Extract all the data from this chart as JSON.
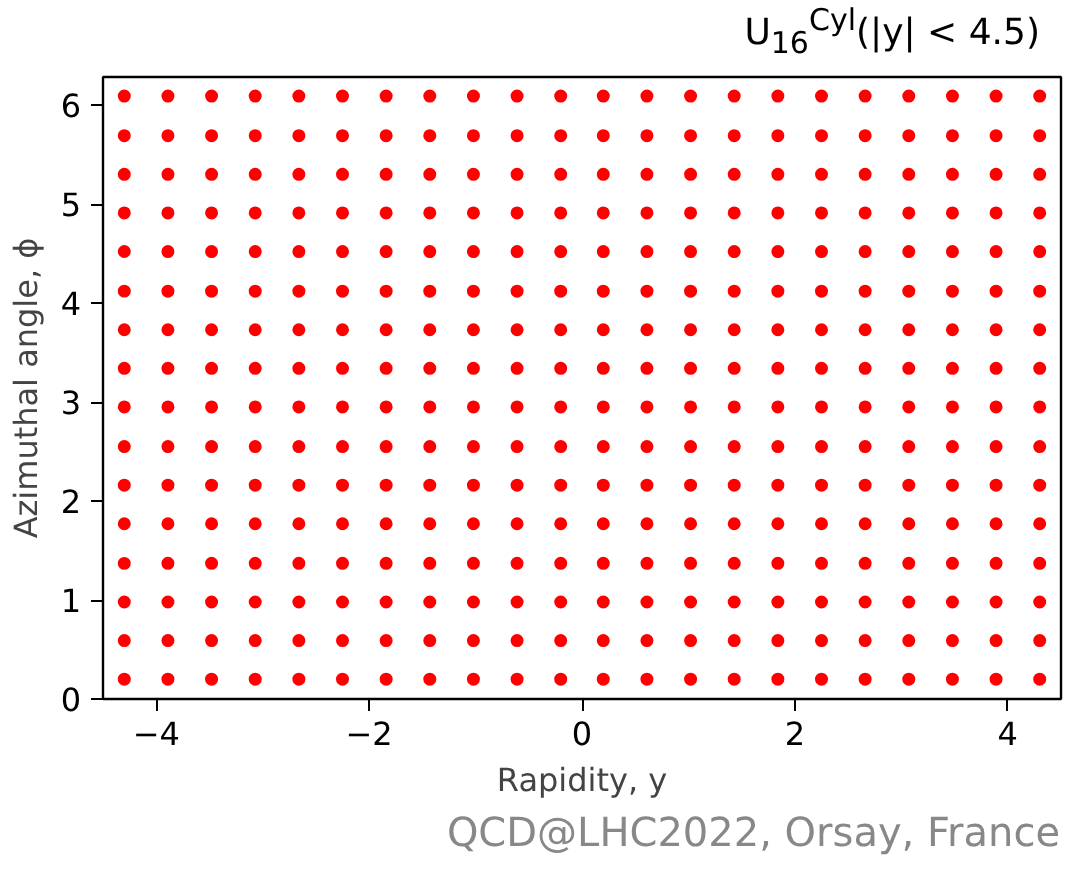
{
  "chart_data": {
    "type": "scatter",
    "title": "U$_{16}$$^{Cyl}$(|y| < 4.5)",
    "xlabel": "Rapidity, y",
    "ylabel": "Azimuthal angle, ϕ",
    "annotations": [
      "QCD@LHC2022, Orsay, France"
    ],
    "marker": "circle",
    "grid": false,
    "xlim": [
      -4.5,
      4.5
    ],
    "ylim": [
      0,
      6.283
    ],
    "xticks": [
      {
        "value": -4,
        "label": "−4"
      },
      {
        "value": -2,
        "label": "−2"
      },
      0,
      2,
      4
    ],
    "yticks": [
      0,
      1,
      2,
      3,
      4,
      5,
      6
    ],
    "series": [
      {
        "color": "#ff0000",
        "x": [
          -4.3,
          -3.89,
          -3.48,
          -3.07,
          -2.66,
          -2.25,
          -1.84,
          -1.43,
          -1.02,
          -0.61,
          -0.2,
          0.2,
          0.61,
          1.02,
          1.43,
          1.84,
          2.25,
          2.66,
          3.07,
          3.48,
          3.89,
          4.3
        ],
        "values": [
          0.2,
          0.2,
          0.2,
          0.2,
          0.2,
          0.2,
          0.2,
          0.2,
          0.2,
          0.2,
          0.2,
          0.2,
          0.2,
          0.2,
          0.2,
          0.2,
          0.2,
          0.2,
          0.2,
          0.2,
          0.2,
          0.2
        ]
      },
      {
        "color": "#ff0000",
        "x": [
          -4.3,
          -3.89,
          -3.48,
          -3.07,
          -2.66,
          -2.25,
          -1.84,
          -1.43,
          -1.02,
          -0.61,
          -0.2,
          0.2,
          0.61,
          1.02,
          1.43,
          1.84,
          2.25,
          2.66,
          3.07,
          3.48,
          3.89,
          4.3
        ],
        "values": [
          0.59,
          0.59,
          0.59,
          0.59,
          0.59,
          0.59,
          0.59,
          0.59,
          0.59,
          0.59,
          0.59,
          0.59,
          0.59,
          0.59,
          0.59,
          0.59,
          0.59,
          0.59,
          0.59,
          0.59,
          0.59,
          0.59
        ]
      },
      {
        "color": "#ff0000",
        "x": [
          -4.3,
          -3.89,
          -3.48,
          -3.07,
          -2.66,
          -2.25,
          -1.84,
          -1.43,
          -1.02,
          -0.61,
          -0.2,
          0.2,
          0.61,
          1.02,
          1.43,
          1.84,
          2.25,
          2.66,
          3.07,
          3.48,
          3.89,
          4.3
        ],
        "values": [
          0.98,
          0.98,
          0.98,
          0.98,
          0.98,
          0.98,
          0.98,
          0.98,
          0.98,
          0.98,
          0.98,
          0.98,
          0.98,
          0.98,
          0.98,
          0.98,
          0.98,
          0.98,
          0.98,
          0.98,
          0.98,
          0.98
        ]
      },
      {
        "color": "#ff0000",
        "x": [
          -4.3,
          -3.89,
          -3.48,
          -3.07,
          -2.66,
          -2.25,
          -1.84,
          -1.43,
          -1.02,
          -0.61,
          -0.2,
          0.2,
          0.61,
          1.02,
          1.43,
          1.84,
          2.25,
          2.66,
          3.07,
          3.48,
          3.89,
          4.3
        ],
        "values": [
          1.37,
          1.37,
          1.37,
          1.37,
          1.37,
          1.37,
          1.37,
          1.37,
          1.37,
          1.37,
          1.37,
          1.37,
          1.37,
          1.37,
          1.37,
          1.37,
          1.37,
          1.37,
          1.37,
          1.37,
          1.37,
          1.37
        ]
      },
      {
        "color": "#ff0000",
        "x": [
          -4.3,
          -3.89,
          -3.48,
          -3.07,
          -2.66,
          -2.25,
          -1.84,
          -1.43,
          -1.02,
          -0.61,
          -0.2,
          0.2,
          0.61,
          1.02,
          1.43,
          1.84,
          2.25,
          2.66,
          3.07,
          3.48,
          3.89,
          4.3
        ],
        "values": [
          1.77,
          1.77,
          1.77,
          1.77,
          1.77,
          1.77,
          1.77,
          1.77,
          1.77,
          1.77,
          1.77,
          1.77,
          1.77,
          1.77,
          1.77,
          1.77,
          1.77,
          1.77,
          1.77,
          1.77,
          1.77,
          1.77
        ]
      },
      {
        "color": "#ff0000",
        "x": [
          -4.3,
          -3.89,
          -3.48,
          -3.07,
          -2.66,
          -2.25,
          -1.84,
          -1.43,
          -1.02,
          -0.61,
          -0.2,
          0.2,
          0.61,
          1.02,
          1.43,
          1.84,
          2.25,
          2.66,
          3.07,
          3.48,
          3.89,
          4.3
        ],
        "values": [
          2.16,
          2.16,
          2.16,
          2.16,
          2.16,
          2.16,
          2.16,
          2.16,
          2.16,
          2.16,
          2.16,
          2.16,
          2.16,
          2.16,
          2.16,
          2.16,
          2.16,
          2.16,
          2.16,
          2.16,
          2.16,
          2.16
        ]
      },
      {
        "color": "#ff0000",
        "x": [
          -4.3,
          -3.89,
          -3.48,
          -3.07,
          -2.66,
          -2.25,
          -1.84,
          -1.43,
          -1.02,
          -0.61,
          -0.2,
          0.2,
          0.61,
          1.02,
          1.43,
          1.84,
          2.25,
          2.66,
          3.07,
          3.48,
          3.89,
          4.3
        ],
        "values": [
          2.55,
          2.55,
          2.55,
          2.55,
          2.55,
          2.55,
          2.55,
          2.55,
          2.55,
          2.55,
          2.55,
          2.55,
          2.55,
          2.55,
          2.55,
          2.55,
          2.55,
          2.55,
          2.55,
          2.55,
          2.55,
          2.55
        ]
      },
      {
        "color": "#ff0000",
        "x": [
          -4.3,
          -3.89,
          -3.48,
          -3.07,
          -2.66,
          -2.25,
          -1.84,
          -1.43,
          -1.02,
          -0.61,
          -0.2,
          0.2,
          0.61,
          1.02,
          1.43,
          1.84,
          2.25,
          2.66,
          3.07,
          3.48,
          3.89,
          4.3
        ],
        "values": [
          2.95,
          2.95,
          2.95,
          2.95,
          2.95,
          2.95,
          2.95,
          2.95,
          2.95,
          2.95,
          2.95,
          2.95,
          2.95,
          2.95,
          2.95,
          2.95,
          2.95,
          2.95,
          2.95,
          2.95,
          2.95,
          2.95
        ]
      },
      {
        "color": "#ff0000",
        "x": [
          -4.3,
          -3.89,
          -3.48,
          -3.07,
          -2.66,
          -2.25,
          -1.84,
          -1.43,
          -1.02,
          -0.61,
          -0.2,
          0.2,
          0.61,
          1.02,
          1.43,
          1.84,
          2.25,
          2.66,
          3.07,
          3.48,
          3.89,
          4.3
        ],
        "values": [
          3.34,
          3.34,
          3.34,
          3.34,
          3.34,
          3.34,
          3.34,
          3.34,
          3.34,
          3.34,
          3.34,
          3.34,
          3.34,
          3.34,
          3.34,
          3.34,
          3.34,
          3.34,
          3.34,
          3.34,
          3.34,
          3.34
        ]
      },
      {
        "color": "#ff0000",
        "x": [
          -4.3,
          -3.89,
          -3.48,
          -3.07,
          -2.66,
          -2.25,
          -1.84,
          -1.43,
          -1.02,
          -0.61,
          -0.2,
          0.2,
          0.61,
          1.02,
          1.43,
          1.84,
          2.25,
          2.66,
          3.07,
          3.48,
          3.89,
          4.3
        ],
        "values": [
          3.73,
          3.73,
          3.73,
          3.73,
          3.73,
          3.73,
          3.73,
          3.73,
          3.73,
          3.73,
          3.73,
          3.73,
          3.73,
          3.73,
          3.73,
          3.73,
          3.73,
          3.73,
          3.73,
          3.73,
          3.73,
          3.73
        ]
      },
      {
        "color": "#ff0000",
        "x": [
          -4.3,
          -3.89,
          -3.48,
          -3.07,
          -2.66,
          -2.25,
          -1.84,
          -1.43,
          -1.02,
          -0.61,
          -0.2,
          0.2,
          0.61,
          1.02,
          1.43,
          1.84,
          2.25,
          2.66,
          3.07,
          3.48,
          3.89,
          4.3
        ],
        "values": [
          4.12,
          4.12,
          4.12,
          4.12,
          4.12,
          4.12,
          4.12,
          4.12,
          4.12,
          4.12,
          4.12,
          4.12,
          4.12,
          4.12,
          4.12,
          4.12,
          4.12,
          4.12,
          4.12,
          4.12,
          4.12,
          4.12
        ]
      },
      {
        "color": "#ff0000",
        "x": [
          -4.3,
          -3.89,
          -3.48,
          -3.07,
          -2.66,
          -2.25,
          -1.84,
          -1.43,
          -1.02,
          -0.61,
          -0.2,
          0.2,
          0.61,
          1.02,
          1.43,
          1.84,
          2.25,
          2.66,
          3.07,
          3.48,
          3.89,
          4.3
        ],
        "values": [
          4.52,
          4.52,
          4.52,
          4.52,
          4.52,
          4.52,
          4.52,
          4.52,
          4.52,
          4.52,
          4.52,
          4.52,
          4.52,
          4.52,
          4.52,
          4.52,
          4.52,
          4.52,
          4.52,
          4.52,
          4.52,
          4.52
        ]
      },
      {
        "color": "#ff0000",
        "x": [
          -4.3,
          -3.89,
          -3.48,
          -3.07,
          -2.66,
          -2.25,
          -1.84,
          -1.43,
          -1.02,
          -0.61,
          -0.2,
          0.2,
          0.61,
          1.02,
          1.43,
          1.84,
          2.25,
          2.66,
          3.07,
          3.48,
          3.89,
          4.3
        ],
        "values": [
          4.91,
          4.91,
          4.91,
          4.91,
          4.91,
          4.91,
          4.91,
          4.91,
          4.91,
          4.91,
          4.91,
          4.91,
          4.91,
          4.91,
          4.91,
          4.91,
          4.91,
          4.91,
          4.91,
          4.91,
          4.91,
          4.91
        ]
      },
      {
        "color": "#ff0000",
        "x": [
          -4.3,
          -3.89,
          -3.48,
          -3.07,
          -2.66,
          -2.25,
          -1.84,
          -1.43,
          -1.02,
          -0.61,
          -0.2,
          0.2,
          0.61,
          1.02,
          1.43,
          1.84,
          2.25,
          2.66,
          3.07,
          3.48,
          3.89,
          4.3
        ],
        "values": [
          5.3,
          5.3,
          5.3,
          5.3,
          5.3,
          5.3,
          5.3,
          5.3,
          5.3,
          5.3,
          5.3,
          5.3,
          5.3,
          5.3,
          5.3,
          5.3,
          5.3,
          5.3,
          5.3,
          5.3,
          5.3,
          5.3
        ]
      },
      {
        "color": "#ff0000",
        "x": [
          -4.3,
          -3.89,
          -3.48,
          -3.07,
          -2.66,
          -2.25,
          -1.84,
          -1.43,
          -1.02,
          -0.61,
          -0.2,
          0.2,
          0.61,
          1.02,
          1.43,
          1.84,
          2.25,
          2.66,
          3.07,
          3.48,
          3.89,
          4.3
        ],
        "values": [
          5.69,
          5.69,
          5.69,
          5.69,
          5.69,
          5.69,
          5.69,
          5.69,
          5.69,
          5.69,
          5.69,
          5.69,
          5.69,
          5.69,
          5.69,
          5.69,
          5.69,
          5.69,
          5.69,
          5.69,
          5.69,
          5.69
        ]
      },
      {
        "color": "#ff0000",
        "x": [
          -4.3,
          -3.89,
          -3.48,
          -3.07,
          -2.66,
          -2.25,
          -1.84,
          -1.43,
          -1.02,
          -0.61,
          -0.2,
          0.2,
          0.61,
          1.02,
          1.43,
          1.84,
          2.25,
          2.66,
          3.07,
          3.48,
          3.89,
          4.3
        ],
        "values": [
          6.09,
          6.09,
          6.09,
          6.09,
          6.09,
          6.09,
          6.09,
          6.09,
          6.09,
          6.09,
          6.09,
          6.09,
          6.09,
          6.09,
          6.09,
          6.09,
          6.09,
          6.09,
          6.09,
          6.09,
          6.09,
          6.09
        ]
      }
    ]
  }
}
